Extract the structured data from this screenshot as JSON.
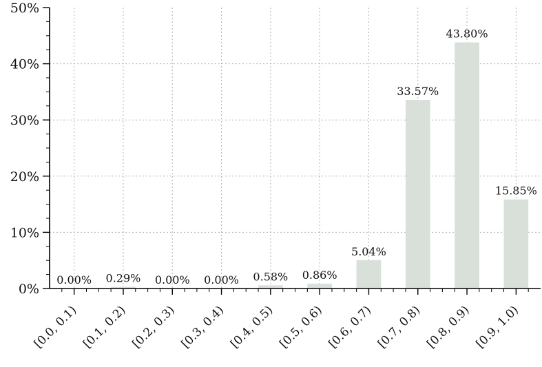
{
  "chart_data": {
    "type": "bar",
    "categories": [
      "[0.0, 0.1)",
      "[0.1, 0.2)",
      "[0.2, 0.3)",
      "[0.3, 0.4)",
      "[0.4, 0.5)",
      "[0.5, 0.6)",
      "[0.6, 0.7)",
      "[0.7, 0.8)",
      "[0.8, 0.9)",
      "[0.9, 1.0)"
    ],
    "values": [
      0.0,
      0.29,
      0.0,
      0.0,
      0.58,
      0.86,
      5.04,
      33.57,
      43.8,
      15.85
    ],
    "data_labels": [
      "0.00%",
      "0.29%",
      "0.00%",
      "0.00%",
      "0.58%",
      "0.86%",
      "5.04%",
      "33.57%",
      "43.80%",
      "15.85%"
    ],
    "title": "",
    "xlabel": "",
    "ylabel": "",
    "ylim": [
      0,
      50
    ],
    "yticks": [
      0,
      10,
      20,
      30,
      40,
      50
    ],
    "ytick_labels": [
      "0%",
      "10%",
      "20%",
      "30%",
      "40%",
      "50%"
    ],
    "yminor_ticks": [
      2.5,
      5,
      7.5,
      12.5,
      15,
      17.5,
      22.5,
      25,
      27.5,
      32.5,
      35,
      37.5,
      42.5,
      45,
      47.5
    ],
    "grid": true,
    "bar_color": "#d8e0d9",
    "axis_color": "#000000",
    "grid_color": "#b0b0b0"
  }
}
